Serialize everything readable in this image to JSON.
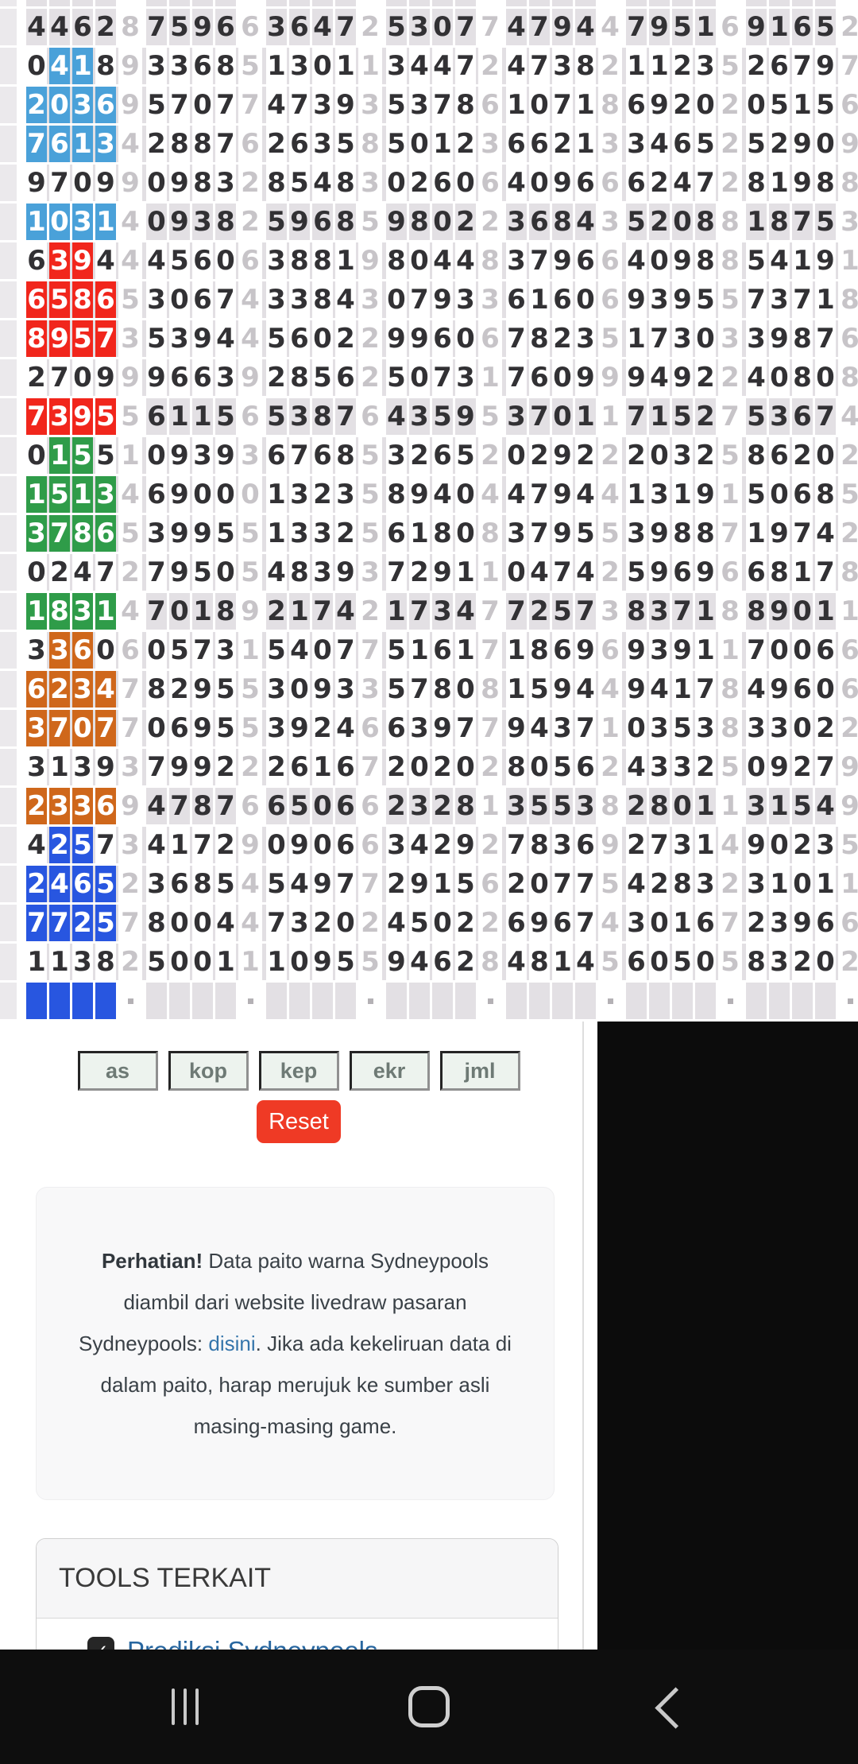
{
  "paito": {
    "colors": {
      "blue": "#4aa1d9",
      "red": "#f1261c",
      "green": "#2f9c49",
      "orange": "#cf671b",
      "royal": "#2856e0"
    },
    "top_sliver": true,
    "rows": [
      {
        "d": [
          "4462",
          "7596",
          "3647",
          "5307",
          "4794",
          "7951",
          "9165"
        ],
        "s": [
          "8",
          "6",
          "2",
          "7",
          "4",
          "6",
          "2"
        ],
        "hl": "",
        "pos": [],
        "band": true
      },
      {
        "d": [
          "0418",
          "3368",
          "1301",
          "3447",
          "4738",
          "1123",
          "2679"
        ],
        "s": [
          "9",
          "5",
          "1",
          "2",
          "2",
          "5",
          "7"
        ],
        "hl": "blue",
        "pos": [
          1,
          2
        ],
        "band": false
      },
      {
        "d": [
          "2036",
          "5707",
          "4739",
          "5378",
          "1071",
          "6920",
          "0515"
        ],
        "s": [
          "9",
          "7",
          "3",
          "6",
          "8",
          "2",
          "6"
        ],
        "hl": "blue",
        "pos": [
          0,
          1,
          2,
          3
        ],
        "band": false
      },
      {
        "d": [
          "7613",
          "2887",
          "2635",
          "5012",
          "6621",
          "3465",
          "5290"
        ],
        "s": [
          "4",
          "6",
          "8",
          "3",
          "3",
          "2",
          "9"
        ],
        "hl": "blue",
        "pos": [
          0,
          1,
          2,
          3
        ],
        "band": false
      },
      {
        "d": [
          "9709",
          "0983",
          "8548",
          "0260",
          "4096",
          "6247",
          "8198"
        ],
        "s": [
          "9",
          "2",
          "3",
          "6",
          "6",
          "2",
          "8"
        ],
        "hl": "",
        "pos": [],
        "band": false
      },
      {
        "d": [
          "1031",
          "0938",
          "5968",
          "9802",
          "3684",
          "5208",
          "1875"
        ],
        "s": [
          "4",
          "2",
          "5",
          "2",
          "3",
          "8",
          "3"
        ],
        "hl": "blue",
        "pos": [
          0,
          1,
          2,
          3
        ],
        "band": true
      },
      {
        "d": [
          "6394",
          "4560",
          "3881",
          "8044",
          "3796",
          "4098",
          "5419"
        ],
        "s": [
          "4",
          "6",
          "9",
          "8",
          "6",
          "8",
          "1"
        ],
        "hl": "red",
        "pos": [
          1,
          2
        ],
        "band": false
      },
      {
        "d": [
          "6586",
          "3067",
          "3384",
          "0793",
          "6160",
          "9395",
          "7371"
        ],
        "s": [
          "5",
          "4",
          "3",
          "3",
          "6",
          "5",
          "8"
        ],
        "hl": "red",
        "pos": [
          0,
          1,
          2,
          3
        ],
        "band": false
      },
      {
        "d": [
          "8957",
          "5394",
          "5602",
          "9960",
          "7823",
          "1730",
          "3987"
        ],
        "s": [
          "3",
          "4",
          "2",
          "6",
          "5",
          "3",
          "6"
        ],
        "hl": "red",
        "pos": [
          0,
          1,
          2,
          3
        ],
        "band": false
      },
      {
        "d": [
          "2709",
          "9663",
          "2856",
          "5073",
          "7609",
          "9492",
          "4080"
        ],
        "s": [
          "9",
          "9",
          "2",
          "1",
          "9",
          "2",
          "8"
        ],
        "hl": "",
        "pos": [],
        "band": false
      },
      {
        "d": [
          "7395",
          "6115",
          "5387",
          "4359",
          "3701",
          "7152",
          "5367"
        ],
        "s": [
          "5",
          "6",
          "6",
          "5",
          "1",
          "7",
          "4"
        ],
        "hl": "red",
        "pos": [
          0,
          1,
          2,
          3
        ],
        "band": true
      },
      {
        "d": [
          "0155",
          "0939",
          "6768",
          "3265",
          "0292",
          "2032",
          "8620"
        ],
        "s": [
          "1",
          "3",
          "5",
          "2",
          "2",
          "5",
          "2"
        ],
        "hl": "green",
        "pos": [
          1,
          2
        ],
        "band": false
      },
      {
        "d": [
          "1513",
          "6900",
          "1323",
          "8940",
          "4794",
          "1319",
          "5068"
        ],
        "s": [
          "4",
          "0",
          "5",
          "4",
          "4",
          "1",
          "5"
        ],
        "hl": "green",
        "pos": [
          0,
          1,
          2,
          3
        ],
        "band": false
      },
      {
        "d": [
          "3786",
          "3995",
          "1332",
          "6180",
          "3795",
          "3988",
          "1974"
        ],
        "s": [
          "5",
          "5",
          "5",
          "8",
          "5",
          "7",
          "2"
        ],
        "hl": "green",
        "pos": [
          0,
          1,
          2,
          3
        ],
        "band": false
      },
      {
        "d": [
          "0247",
          "7950",
          "4839",
          "7291",
          "0474",
          "5969",
          "6817"
        ],
        "s": [
          "2",
          "5",
          "3",
          "1",
          "2",
          "6",
          "8"
        ],
        "hl": "",
        "pos": [],
        "band": false
      },
      {
        "d": [
          "1831",
          "7018",
          "2174",
          "1734",
          "7257",
          "8371",
          "8901"
        ],
        "s": [
          "4",
          "9",
          "2",
          "7",
          "3",
          "8",
          "1"
        ],
        "hl": "green",
        "pos": [
          0,
          1,
          2,
          3
        ],
        "band": true
      },
      {
        "d": [
          "3360",
          "0573",
          "5407",
          "5161",
          "1869",
          "9391",
          "7006"
        ],
        "s": [
          "6",
          "1",
          "7",
          "7",
          "6",
          "1",
          "6"
        ],
        "hl": "orange",
        "pos": [
          1,
          2
        ],
        "band": false
      },
      {
        "d": [
          "6234",
          "8295",
          "3093",
          "5780",
          "1594",
          "9417",
          "4960"
        ],
        "s": [
          "7",
          "5",
          "3",
          "8",
          "4",
          "8",
          "6"
        ],
        "hl": "orange",
        "pos": [
          0,
          1,
          2,
          3
        ],
        "band": false
      },
      {
        "d": [
          "3707",
          "0695",
          "3924",
          "6397",
          "9437",
          "0353",
          "3302"
        ],
        "s": [
          "7",
          "5",
          "6",
          "7",
          "1",
          "8",
          "2"
        ],
        "hl": "orange",
        "pos": [
          0,
          1,
          2,
          3
        ],
        "band": false
      },
      {
        "d": [
          "3139",
          "7992",
          "2616",
          "2020",
          "8056",
          "4332",
          "0927"
        ],
        "s": [
          "3",
          "2",
          "7",
          "2",
          "2",
          "5",
          "9"
        ],
        "hl": "",
        "pos": [],
        "band": false
      },
      {
        "d": [
          "2336",
          "4787",
          "6506",
          "2328",
          "3553",
          "2801",
          "3154"
        ],
        "s": [
          "9",
          "6",
          "6",
          "1",
          "8",
          "1",
          "9"
        ],
        "hl": "orange",
        "pos": [
          0,
          1,
          2,
          3
        ],
        "band": true
      },
      {
        "d": [
          "4257",
          "4172",
          "0906",
          "3429",
          "7836",
          "2731",
          "9023"
        ],
        "s": [
          "3",
          "9",
          "6",
          "2",
          "9",
          "4",
          "5"
        ],
        "hl": "royal",
        "pos": [
          1,
          2
        ],
        "band": false
      },
      {
        "d": [
          "2465",
          "3685",
          "5497",
          "2915",
          "2077",
          "4283",
          "3101"
        ],
        "s": [
          "2",
          "4",
          "7",
          "6",
          "5",
          "2",
          "1"
        ],
        "hl": "royal",
        "pos": [
          0,
          1,
          2,
          3
        ],
        "band": false
      },
      {
        "d": [
          "7725",
          "8004",
          "7320",
          "4502",
          "6967",
          "3016",
          "2396"
        ],
        "s": [
          "7",
          "4",
          "2",
          "2",
          "4",
          "7",
          "6"
        ],
        "hl": "royal",
        "pos": [
          0,
          1,
          2,
          3
        ],
        "band": false
      },
      {
        "d": [
          "1138",
          "5001",
          "1095",
          "9462",
          "4814",
          "6050",
          "8320"
        ],
        "s": [
          "2",
          "1",
          "5",
          "8",
          "5",
          "5",
          "2"
        ],
        "hl": "",
        "pos": [],
        "band": false
      }
    ],
    "pending_row": {
      "hl": "royal",
      "band": true
    }
  },
  "filter_buttons": [
    "as",
    "kop",
    "kep",
    "ekr",
    "jml"
  ],
  "reset_label": "Reset",
  "notice": {
    "line1_bold": "Perhatian!",
    "line1_rest": " Data paito warna Sydneypools",
    "line2": "diambil dari website livedraw pasaran",
    "line3_before": "Sydneypools: ",
    "line3_link": "disini",
    "line3_after": ". Jika ada kekeliruan data di",
    "line4": "dalam paito, harap merujuk ke sumber asli",
    "line5": "masing-masing game."
  },
  "tools": {
    "title": "TOOLS TERKAIT",
    "items": [
      {
        "label": "Prediksi Sydneypools",
        "checked": true
      }
    ]
  },
  "ui": {
    "reset_bg": "#ef3a25",
    "link_color": "#3575ab",
    "tool_link_color": "#2867a0",
    "band_bg": "#e3e0e4",
    "navbar_bg": "#0e0e0e",
    "nav_icon_color": "#c9c9c9"
  },
  "navbar": {
    "icons": [
      "recent-apps",
      "home",
      "back"
    ]
  }
}
